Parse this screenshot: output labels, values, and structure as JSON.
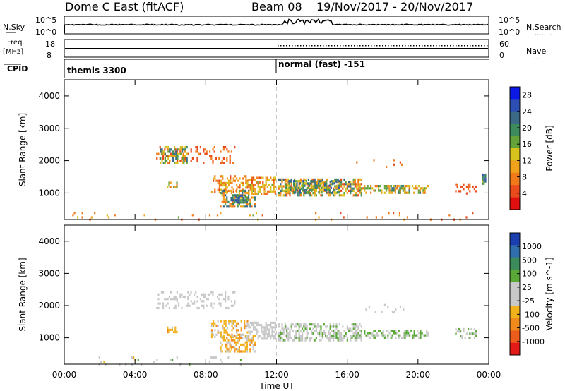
{
  "header": {
    "station": "Dome C East (fitACF)",
    "beam": "Beam 08",
    "date_range": "19/Nov/2017 - 20/Nov/2017"
  },
  "sky_panel": {
    "left_label": "N.Sky",
    "right_label": "N.Search",
    "left_ticks": [
      "10^5",
      "10^0"
    ],
    "right_ticks": [
      "10^5",
      "10^0"
    ]
  },
  "freq_panel": {
    "left_label_line1": "Freq.",
    "left_label_line2": "[MHz]",
    "left_ticks": [
      "18",
      "8"
    ],
    "right_label": "Nave",
    "right_ticks": [
      "60",
      "0"
    ]
  },
  "cpid_panel": {
    "label": "CPID",
    "mode1": "themis 3300",
    "mode2": "normal (fast) -151"
  },
  "chart_data": [
    {
      "type": "heatmap",
      "title": "",
      "xlabel": "Time UT",
      "ylabel": "Slant Range [km]",
      "x_ticks": [
        "00:00",
        "04:00",
        "08:00",
        "12:00",
        "16:00",
        "20:00",
        "00:00"
      ],
      "y_ticks": [
        "1000",
        "2000",
        "3000",
        "4000"
      ],
      "xlim_hours": [
        0,
        24
      ],
      "ylim_km": [
        180,
        4500
      ],
      "colorbar_label": "Power [dB]",
      "colorbar_ticks": [
        "4",
        "8",
        "12",
        "16",
        "20",
        "24",
        "28"
      ],
      "colorbar_range": [
        0,
        30
      ],
      "colorbar_colors": [
        "#0a19e6",
        "#2d4fb4",
        "#3a6a86",
        "#3d8a5c",
        "#64a23a",
        "#d7c21d",
        "#f0a21c",
        "#f07a1a",
        "#e94b1c",
        "#e00f10"
      ],
      "regions": [
        {
          "t": [
            0.1,
            11.4
          ],
          "r": [
            200,
            420
          ],
          "density": 0.05,
          "value": [
            4,
            18
          ]
        },
        {
          "t": [
            14.0,
            24.0
          ],
          "r": [
            200,
            420
          ],
          "density": 0.04,
          "value": [
            4,
            10
          ]
        },
        {
          "t": [
            5.2,
            9.6
          ],
          "r": [
            1950,
            2450
          ],
          "density": 0.2,
          "value": [
            3,
            8
          ]
        },
        {
          "t": [
            5.4,
            6.9
          ],
          "r": [
            1950,
            2450
          ],
          "density": 0.45,
          "value": [
            10,
            24
          ]
        },
        {
          "t": [
            5.8,
            6.4
          ],
          "r": [
            1150,
            1350
          ],
          "density": 0.55,
          "value": [
            6,
            18
          ]
        },
        {
          "t": [
            8.3,
            10.4
          ],
          "r": [
            1050,
            1550
          ],
          "density": 0.45,
          "value": [
            4,
            14
          ]
        },
        {
          "t": [
            8.8,
            10.8
          ],
          "r": [
            600,
            1100
          ],
          "density": 0.55,
          "value": [
            6,
            24
          ]
        },
        {
          "t": [
            9.4,
            10.4
          ],
          "r": [
            700,
            950
          ],
          "density": 0.6,
          "value": [
            16,
            26
          ]
        },
        {
          "t": [
            10.4,
            11.9
          ],
          "r": [
            1000,
            1500
          ],
          "density": 0.6,
          "value": [
            4,
            16
          ]
        },
        {
          "t": [
            12.1,
            16.8
          ],
          "r": [
            950,
            1450
          ],
          "density": 0.55,
          "value": [
            4,
            24
          ]
        },
        {
          "t": [
            12.5,
            15.5
          ],
          "r": [
            1050,
            1400
          ],
          "density": 0.6,
          "value": [
            10,
            26
          ]
        },
        {
          "t": [
            16.5,
            19.5
          ],
          "r": [
            1000,
            1250
          ],
          "density": 0.5,
          "value": [
            6,
            20
          ]
        },
        {
          "t": [
            18.5,
            20.6
          ],
          "r": [
            1000,
            1250
          ],
          "density": 0.55,
          "value": [
            8,
            24
          ]
        },
        {
          "t": [
            22.1,
            23.3
          ],
          "r": [
            1000,
            1300
          ],
          "density": 0.35,
          "value": [
            3,
            8
          ]
        },
        {
          "t": [
            23.6,
            23.8
          ],
          "r": [
            1300,
            1600
          ],
          "density": 0.8,
          "value": [
            14,
            26
          ]
        },
        {
          "t": [
            16.5,
            19.2
          ],
          "r": [
            1800,
            2050
          ],
          "density": 0.08,
          "value": [
            3,
            8
          ]
        }
      ]
    },
    {
      "type": "heatmap",
      "title": "",
      "xlabel": "Time UT",
      "ylabel": "Slant Range [km]",
      "x_ticks": [
        "00:00",
        "04:00",
        "08:00",
        "12:00",
        "16:00",
        "20:00",
        "00:00"
      ],
      "y_ticks": [
        "1000",
        "2000",
        "3000",
        "4000"
      ],
      "xlim_hours": [
        0,
        24
      ],
      "ylim_km": [
        180,
        4500
      ],
      "colorbar_label": "Velocity [m s^-1]",
      "colorbar_ticks": [
        "1000",
        "500",
        "100",
        "25",
        "-25",
        "-100",
        "-500",
        "-1000"
      ],
      "colorbar_range": [
        -1200,
        1200
      ],
      "colorbar_colors": [
        "#1c3fb0",
        "#2f6dac",
        "#3c8b5c",
        "#5aa838",
        "#c8c8c8",
        "#c8c8c8",
        "#f2b21e",
        "#f08a1d",
        "#ec5d1d",
        "#e21a18"
      ],
      "regions": [
        {
          "t": [
            0.1,
            11.4
          ],
          "r": [
            200,
            420
          ],
          "density": 0.04,
          "value": [
            -300,
            300
          ]
        },
        {
          "t": [
            5.2,
            9.6
          ],
          "r": [
            1950,
            2450
          ],
          "density": 0.25,
          "value": [
            -150,
            150
          ]
        },
        {
          "t": [
            5.8,
            6.4
          ],
          "r": [
            1150,
            1350
          ],
          "density": 0.55,
          "value": [
            -500,
            -200
          ]
        },
        {
          "t": [
            8.3,
            10.4
          ],
          "r": [
            1050,
            1550
          ],
          "density": 0.45,
          "value": [
            -600,
            -100
          ]
        },
        {
          "t": [
            8.8,
            10.8
          ],
          "r": [
            600,
            1100
          ],
          "density": 0.55,
          "value": [
            -600,
            -150
          ]
        },
        {
          "t": [
            10.4,
            11.9
          ],
          "r": [
            1000,
            1500
          ],
          "density": 0.55,
          "value": [
            -200,
            200
          ]
        },
        {
          "t": [
            12.1,
            16.8
          ],
          "r": [
            950,
            1450
          ],
          "density": 0.55,
          "value": [
            -200,
            400
          ]
        },
        {
          "t": [
            16.5,
            20.6
          ],
          "r": [
            1000,
            1250
          ],
          "density": 0.5,
          "value": [
            50,
            400
          ]
        },
        {
          "t": [
            22.1,
            23.3
          ],
          "r": [
            1000,
            1300
          ],
          "density": 0.35,
          "value": [
            100,
            300
          ]
        },
        {
          "t": [
            16.5,
            19.2
          ],
          "r": [
            1800,
            2050
          ],
          "density": 0.08,
          "value": [
            -30,
            30
          ]
        }
      ]
    }
  ]
}
